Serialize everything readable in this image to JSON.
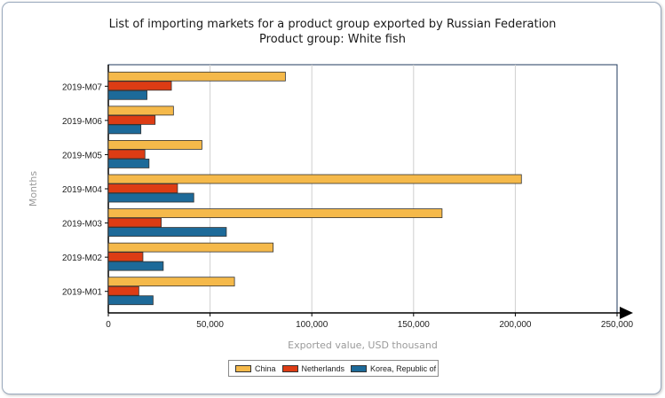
{
  "chart_data": {
    "type": "bar",
    "orientation": "horizontal",
    "title": "List of importing markets for a product group exported by Russian Federation",
    "subtitle": "Product group: White fish",
    "xlabel": "Exported value, USD thousand",
    "ylabel": "Months",
    "xlim": [
      0,
      250000
    ],
    "xticks": [
      0,
      50000,
      100000,
      150000,
      200000,
      250000
    ],
    "xtick_labels": [
      "0",
      "50,000",
      "100,000",
      "150,000",
      "200,000",
      "250,000"
    ],
    "categories": [
      "2019-M07",
      "2019-M06",
      "2019-M05",
      "2019-M04",
      "2019-M03",
      "2019-M02",
      "2019-M01"
    ],
    "series": [
      {
        "name": "China",
        "color": "#f5b94a",
        "values": [
          87000,
          32000,
          46000,
          203000,
          164000,
          81000,
          62000
        ]
      },
      {
        "name": "Netherlands",
        "color": "#dd3c14",
        "values": [
          31000,
          23000,
          18000,
          34000,
          26000,
          17000,
          15000
        ]
      },
      {
        "name": "Korea, Republic of",
        "color": "#1d6a99",
        "values": [
          19000,
          16000,
          20000,
          42000,
          58000,
          27000,
          22000
        ]
      }
    ],
    "grid": true,
    "legend_position": "bottom-center"
  }
}
